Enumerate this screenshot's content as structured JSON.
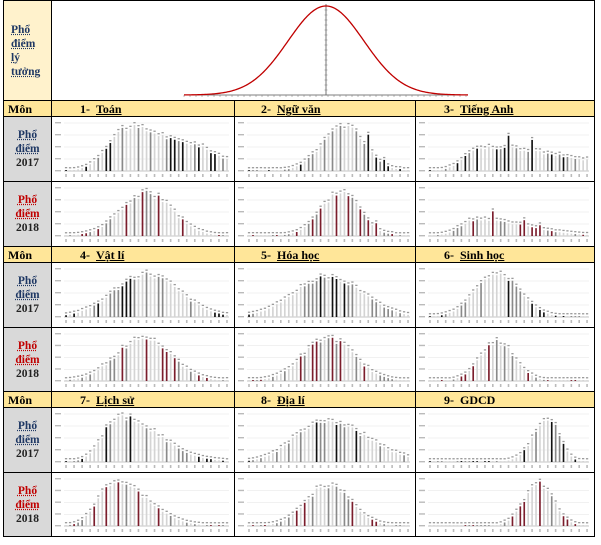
{
  "ideal": {
    "label_lines": [
      "Phổ",
      "điểm",
      "lý",
      "tưởng"
    ],
    "chart_data": {
      "type": "line",
      "shape": "normal-distribution-curve",
      "color": "#c00000"
    }
  },
  "labels": {
    "mon": "Môn",
    "pho": "Phổ",
    "diem": "điểm",
    "y2017": "2017",
    "y2018": "2018"
  },
  "subjects": [
    {
      "num": "1-",
      "name": "Toán"
    },
    {
      "num": "2-",
      "name": "Ngữ văn"
    },
    {
      "num": "3-",
      "name": "Tiếng Anh"
    },
    {
      "num": "4-",
      "name": "Vật lí"
    },
    {
      "num": "5-",
      "name": "Hóa học"
    },
    {
      "num": "6-",
      "name": "Sinh học"
    },
    {
      "num": "7-",
      "name": "Lịch sử"
    },
    {
      "num": "8-",
      "name": "Địa lí"
    },
    {
      "num": "9-",
      "name": "GDCD"
    }
  ],
  "chart_data": [
    {
      "type": "bar",
      "subject": "Toán",
      "year": "2017",
      "mu": 0.38,
      "sl": 0.12,
      "sr": 0.34,
      "plateau": 0.62,
      "peak": 0.92,
      "accent": "#111111"
    },
    {
      "type": "bar",
      "subject": "Toán",
      "year": "2018",
      "mu": 0.5,
      "sl": 0.16,
      "sr": 0.16,
      "peak": 0.9,
      "accent": "#7b1d2c"
    },
    {
      "type": "bar",
      "subject": "Ngữ văn",
      "year": "2017",
      "mu": 0.6,
      "sl": 0.14,
      "sr": 0.13,
      "peak": 0.95,
      "spikes": [
        30,
        34,
        38
      ],
      "accent": "#111111"
    },
    {
      "type": "bar",
      "subject": "Ngữ văn",
      "year": "2018",
      "mu": 0.58,
      "sl": 0.13,
      "sr": 0.12,
      "peak": 0.92,
      "spikes": [
        32,
        36
      ],
      "accent": "#7b1d2c"
    },
    {
      "type": "bar",
      "subject": "Tiếng Anh",
      "year": "2017",
      "mu": 0.32,
      "sl": 0.1,
      "sr": 0.55,
      "peak": 0.5,
      "spikes": [
        20,
        26
      ],
      "accent": "#111111"
    },
    {
      "type": "bar",
      "subject": "Tiếng Anh",
      "year": "2018",
      "mu": 0.3,
      "sl": 0.1,
      "sr": 0.3,
      "peak": 0.35,
      "spikes": [
        16,
        24,
        28
      ],
      "accent": "#7b1d2c"
    },
    {
      "type": "bar",
      "subject": "Vật lí",
      "year": "2017",
      "mu": 0.5,
      "sl": 0.2,
      "sr": 0.2,
      "peak": 0.9,
      "accent": "#111111"
    },
    {
      "type": "bar",
      "subject": "Vật lí",
      "year": "2018",
      "mu": 0.48,
      "sl": 0.17,
      "sr": 0.17,
      "peak": 0.92,
      "accent": "#7b1d2c"
    },
    {
      "type": "bar",
      "subject": "Hóa học",
      "year": "2017",
      "mu": 0.5,
      "sl": 0.21,
      "sr": 0.21,
      "peak": 0.85,
      "accent": "#111111"
    },
    {
      "type": "bar",
      "subject": "Hóa học",
      "year": "2018",
      "mu": 0.5,
      "sl": 0.16,
      "sr": 0.16,
      "peak": 0.92,
      "accent": "#7b1d2c"
    },
    {
      "type": "bar",
      "subject": "Sinh học",
      "year": "2017",
      "mu": 0.43,
      "sl": 0.14,
      "sr": 0.14,
      "peak": 0.92,
      "accent": "#111111"
    },
    {
      "type": "bar",
      "subject": "Sinh học",
      "year": "2018",
      "mu": 0.43,
      "sl": 0.11,
      "sr": 0.11,
      "peak": 0.85,
      "accent": "#7b1d2c"
    },
    {
      "type": "bar",
      "subject": "Lịch sử",
      "year": "2017",
      "mu": 0.33,
      "sl": 0.1,
      "sr": 0.24,
      "peak": 0.95,
      "accent": "#111111"
    },
    {
      "type": "bar",
      "subject": "Lịch sử",
      "year": "2018",
      "mu": 0.3,
      "sl": 0.1,
      "sr": 0.2,
      "peak": 0.95,
      "accent": "#7b1d2c"
    },
    {
      "type": "bar",
      "subject": "Địa lí",
      "year": "2017",
      "mu": 0.47,
      "sl": 0.18,
      "sr": 0.26,
      "peak": 0.88,
      "accent": "#111111"
    },
    {
      "type": "bar",
      "subject": "Địa lí",
      "year": "2018",
      "mu": 0.5,
      "sl": 0.14,
      "sr": 0.14,
      "peak": 0.88,
      "accent": "#7b1d2c"
    },
    {
      "type": "bar",
      "subject": "GDCD",
      "year": "2017",
      "mu": 0.76,
      "sl": 0.1,
      "sr": 0.07,
      "peak": 0.9,
      "accent": "#111111"
    },
    {
      "type": "bar",
      "subject": "GDCD",
      "year": "2018",
      "mu": 0.7,
      "sl": 0.1,
      "sr": 0.09,
      "peak": 0.9,
      "accent": "#7b1d2c"
    }
  ]
}
